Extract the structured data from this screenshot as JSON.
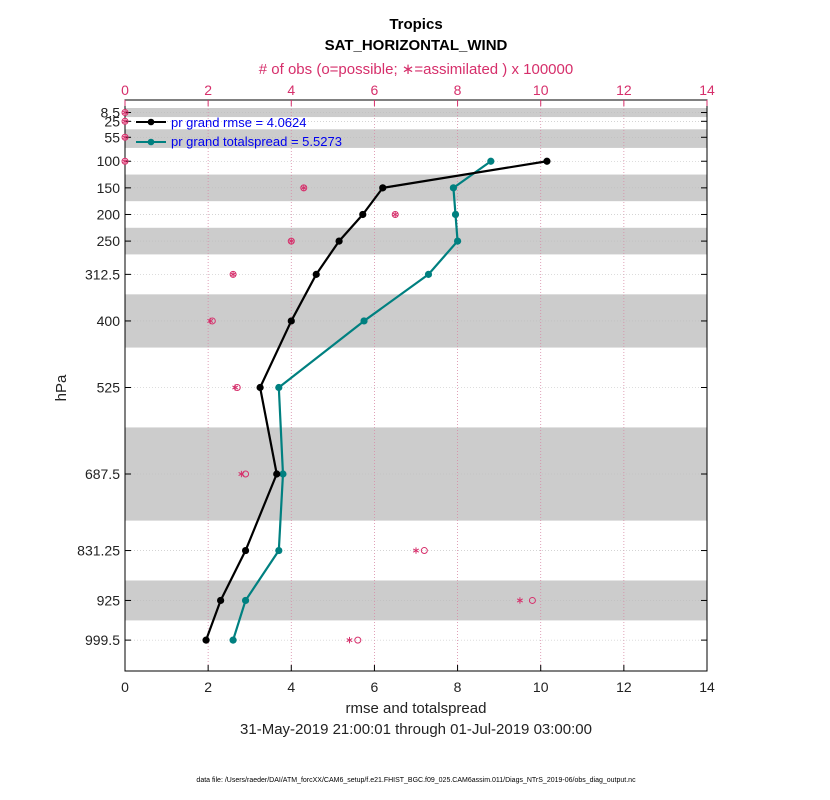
{
  "chart_data": {
    "type": "line",
    "title": "Tropics",
    "subtitle": "SAT_HORIZONTAL_WIND",
    "top_axis_label": "# of obs (o=possible; ∗=assimilated ) x 100000",
    "xlabel": "rmse and totalspread",
    "ylabel": "hPa",
    "date_range": "31-May-2019 21:00:01 through 01-Jul-2019 03:00:00",
    "footnote": "data file: /Users/raeder/DAI/ATM_forcXX/CAM6_setup/f.e21.FHIST_BGC.f09_025.CAM6assim.011/Diags_NTrS_2019-06/obs_diag_output.nc",
    "xlim": [
      0,
      14
    ],
    "x_ticks": [
      "0",
      "2",
      "4",
      "6",
      "8",
      "10",
      "12",
      "14"
    ],
    "top_ticks": [
      "0",
      "2",
      "4",
      "6",
      "8",
      "10",
      "12",
      "14"
    ],
    "levels": [
      8.5,
      25,
      55,
      100,
      150,
      200,
      250,
      312.5,
      400,
      525,
      687.5,
      831.25,
      925,
      999.5
    ],
    "level_labels": [
      "8.5",
      "25",
      "55",
      "100",
      "150",
      "200",
      "250",
      "312.5",
      "400",
      "525",
      "687.5",
      "831.25",
      "925",
      "999.5"
    ],
    "ylim": [
      0,
      1050
    ],
    "series": [
      {
        "name": "pr grand rmse = 4.0624",
        "color": "#000000",
        "levels": [
          100,
          150,
          200,
          250,
          312.5,
          400,
          525,
          687.5,
          831.25,
          925,
          999.5
        ],
        "values": [
          10.15,
          6.2,
          5.72,
          5.15,
          4.6,
          4.0,
          3.25,
          3.65,
          2.9,
          2.3,
          1.95
        ]
      },
      {
        "name": "pr grand totalspread = 5.5273",
        "color": "#008080",
        "levels": [
          100,
          150,
          200,
          250,
          312.5,
          400,
          525,
          687.5,
          831.25,
          925,
          999.5
        ],
        "values": [
          8.8,
          7.9,
          7.95,
          8.0,
          7.3,
          5.75,
          3.7,
          3.8,
          3.7,
          2.9,
          2.6
        ]
      }
    ],
    "obs_counts": {
      "color": "#d62f6b",
      "levels": [
        8.5,
        25,
        55,
        100,
        150,
        200,
        250,
        312.5,
        400,
        525,
        687.5,
        831.25,
        925,
        999.5
      ],
      "possible": [
        0,
        0,
        0,
        0,
        4.3,
        6.5,
        4.0,
        2.6,
        2.1,
        2.7,
        2.9,
        7.2,
        9.8,
        5.6
      ],
      "assimilated": [
        0,
        0,
        0,
        0,
        4.3,
        6.5,
        4.0,
        2.6,
        2.05,
        2.65,
        2.8,
        7.0,
        9.5,
        5.4
      ]
    },
    "shaded_bands": [
      [
        0,
        17
      ],
      [
        40,
        75
      ],
      [
        125,
        175
      ],
      [
        225,
        275
      ],
      [
        350,
        450
      ],
      [
        600,
        775
      ],
      [
        887.5,
        962.5
      ]
    ],
    "grid": "vertical-dotted",
    "legend_position": "top-left"
  }
}
